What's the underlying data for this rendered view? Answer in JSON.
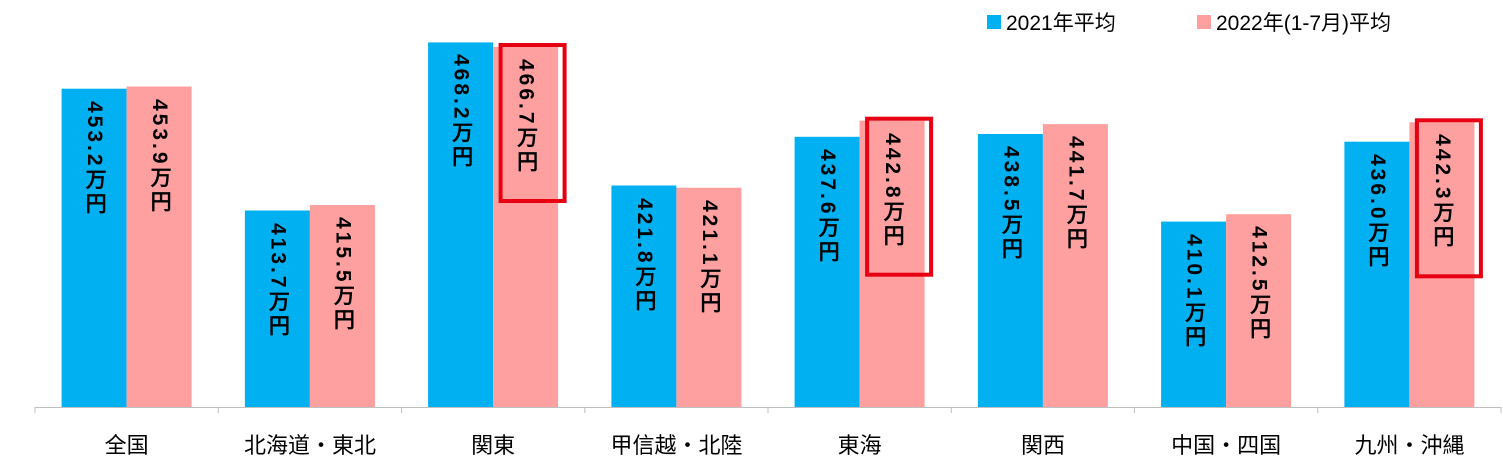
{
  "chart_data": {
    "type": "bar",
    "categories": [
      "全国",
      "北海道・東北",
      "関東",
      "甲信越・北陸",
      "東海",
      "関西",
      "中国・四国",
      "九州・沖縄"
    ],
    "series": [
      {
        "name": "2021年平均",
        "color": "#00B0F0",
        "values": [
          453.2,
          413.7,
          468.2,
          421.8,
          437.6,
          438.5,
          410.1,
          436.0
        ],
        "data_labels": [
          "453.2万円",
          "413.7万円",
          "468.2万円",
          "421.8万円",
          "437.6万円",
          "438.5万円",
          "410.1万円",
          "436.0万円"
        ]
      },
      {
        "name": "2022年(1-7月)平均",
        "color": "#FFA0A0",
        "values": [
          453.9,
          415.5,
          466.7,
          421.1,
          442.8,
          441.7,
          412.5,
          442.3
        ],
        "data_labels": [
          "453.9万円",
          "415.5万円",
          "466.7万円",
          "421.1万円",
          "442.8万円",
          "441.7万円",
          "412.5万円",
          "442.3万円"
        ],
        "highlighted": [
          2,
          4,
          7
        ]
      }
    ],
    "highlight_color": "#E60012",
    "ylim": [
      350,
      480
    ],
    "y_axis_visible": false,
    "grid": false,
    "legend": "top-right"
  }
}
